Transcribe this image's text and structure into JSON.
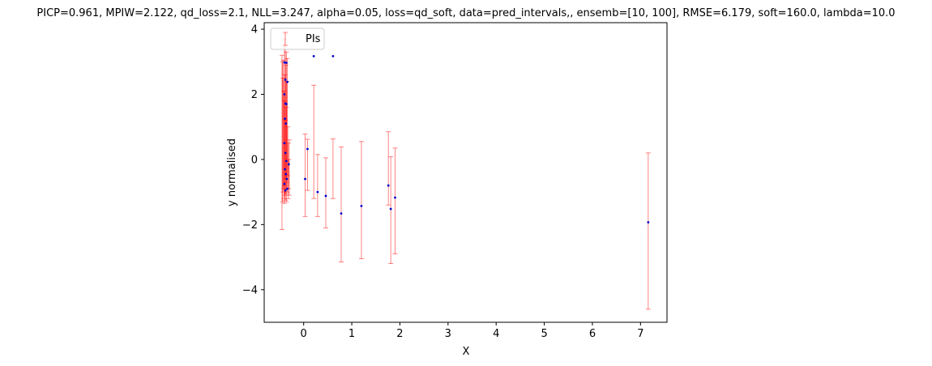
{
  "chart_data": {
    "type": "scatter",
    "title": "PICP=0.961, MPIW=2.122, qd_loss=2.1, NLL=3.247, alpha=0.05, loss=qd_soft, data=pred_intervals,, ensemb=[10, 100], RMSE=6.179, soft=160.0, lambda=10.0",
    "xlabel": "X",
    "ylabel": "y normalised",
    "xlim": [
      -0.82,
      7.55
    ],
    "ylim": [
      -5.0,
      4.2
    ],
    "xticks": [
      "0",
      "1",
      "2",
      "3",
      "4",
      "5",
      "6",
      "7"
    ],
    "yticks": [
      "−4",
      "−2",
      "0",
      "2",
      "4"
    ],
    "grid": false,
    "legend": {
      "position": "upper-left",
      "entries": [
        {
          "label": "PIs",
          "color": "#ff0000"
        }
      ]
    },
    "colors": {
      "interval": "#ff0000",
      "point": "#0000cc"
    },
    "series": [
      {
        "name": "PIs",
        "kind": "errorbar",
        "intervals": [
          [
            -0.45,
            -2.15,
            3.2
          ],
          [
            -0.44,
            -1.3,
            3.0
          ],
          [
            -0.43,
            -1.0,
            2.5
          ],
          [
            -0.42,
            -0.9,
            3.05
          ],
          [
            -0.41,
            -1.2,
            2.1
          ],
          [
            -0.4,
            -1.35,
            3.7
          ],
          [
            -0.4,
            -0.8,
            1.8
          ],
          [
            -0.39,
            -1.1,
            2.6
          ],
          [
            -0.38,
            -1.25,
            3.85
          ],
          [
            -0.38,
            -0.6,
            1.2
          ],
          [
            -0.37,
            -1.05,
            2.9
          ],
          [
            -0.36,
            -0.7,
            3.3
          ],
          [
            -0.36,
            -1.3,
            1.6
          ],
          [
            -0.35,
            -0.9,
            2.4
          ],
          [
            -0.34,
            -1.0,
            3.1
          ],
          [
            -0.33,
            -0.5,
            1.0
          ],
          [
            -0.32,
            -1.2,
            0.5
          ],
          [
            -0.31,
            -0.9,
            0.0
          ],
          [
            -0.3,
            -1.1,
            0.6
          ],
          [
            0.03,
            -1.75,
            0.78
          ],
          [
            0.08,
            -0.95,
            0.62
          ],
          [
            0.21,
            -1.2,
            2.28
          ],
          [
            0.29,
            -1.75,
            0.15
          ],
          [
            0.46,
            -2.1,
            0.05
          ],
          [
            0.61,
            -1.2,
            0.63
          ],
          [
            0.78,
            -3.15,
            0.38
          ],
          [
            1.2,
            -3.05,
            0.55
          ],
          [
            1.76,
            -1.4,
            0.85
          ],
          [
            1.81,
            -3.2,
            0.08
          ],
          [
            1.9,
            -2.9,
            0.35
          ],
          [
            7.16,
            -4.6,
            0.2
          ]
        ]
      },
      {
        "name": "",
        "kind": "points",
        "points": [
          [
            -0.4,
            2.98
          ],
          [
            -0.38,
            2.45
          ],
          [
            -0.36,
            2.97
          ],
          [
            -0.34,
            2.38
          ],
          [
            -0.4,
            2.0
          ],
          [
            -0.38,
            1.72
          ],
          [
            -0.36,
            1.7
          ],
          [
            -0.39,
            1.25
          ],
          [
            -0.37,
            1.1
          ],
          [
            -0.4,
            0.5
          ],
          [
            -0.38,
            0.2
          ],
          [
            -0.36,
            -0.05
          ],
          [
            -0.39,
            -0.3
          ],
          [
            -0.37,
            -0.45
          ],
          [
            -0.35,
            -0.6
          ],
          [
            -0.4,
            -0.75
          ],
          [
            -0.38,
            -0.95
          ],
          [
            -0.34,
            -0.9
          ],
          [
            -0.31,
            -0.15
          ],
          [
            0.03,
            -0.6
          ],
          [
            0.08,
            0.32
          ],
          [
            0.21,
            3.17
          ],
          [
            0.29,
            -1.0
          ],
          [
            0.46,
            -1.12
          ],
          [
            0.61,
            3.17
          ],
          [
            0.78,
            -1.66
          ],
          [
            1.2,
            -1.43
          ],
          [
            1.76,
            -0.8
          ],
          [
            1.81,
            -1.52
          ],
          [
            1.9,
            -1.17
          ],
          [
            7.16,
            -1.93
          ]
        ]
      }
    ]
  }
}
